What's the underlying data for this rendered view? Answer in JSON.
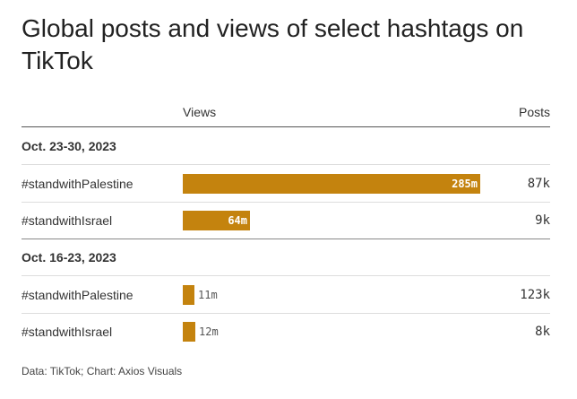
{
  "chart_data": {
    "type": "bar",
    "title": "Global posts and views of select hashtags on TikTok",
    "column_headers": {
      "views": "Views",
      "posts": "Posts"
    },
    "xlim": [
      0,
      285
    ],
    "groups": [
      {
        "label": "Oct. 23-30, 2023",
        "rows": [
          {
            "hashtag": "#standwithPalestine",
            "views": 285,
            "views_label": "285m",
            "posts_label": "87k"
          },
          {
            "hashtag": "#standwithIsrael",
            "views": 64,
            "views_label": "64m",
            "posts_label": "9k"
          }
        ]
      },
      {
        "label": "Oct. 16-23, 2023",
        "rows": [
          {
            "hashtag": "#standwithPalestine",
            "views": 11,
            "views_label": "11m",
            "posts_label": "123k"
          },
          {
            "hashtag": "#standwithIsrael",
            "views": 12,
            "views_label": "12m",
            "posts_label": "8k"
          }
        ]
      }
    ],
    "source": "Data: TikTok; Chart: Axios Visuals",
    "bar_color": "#c4830e"
  }
}
